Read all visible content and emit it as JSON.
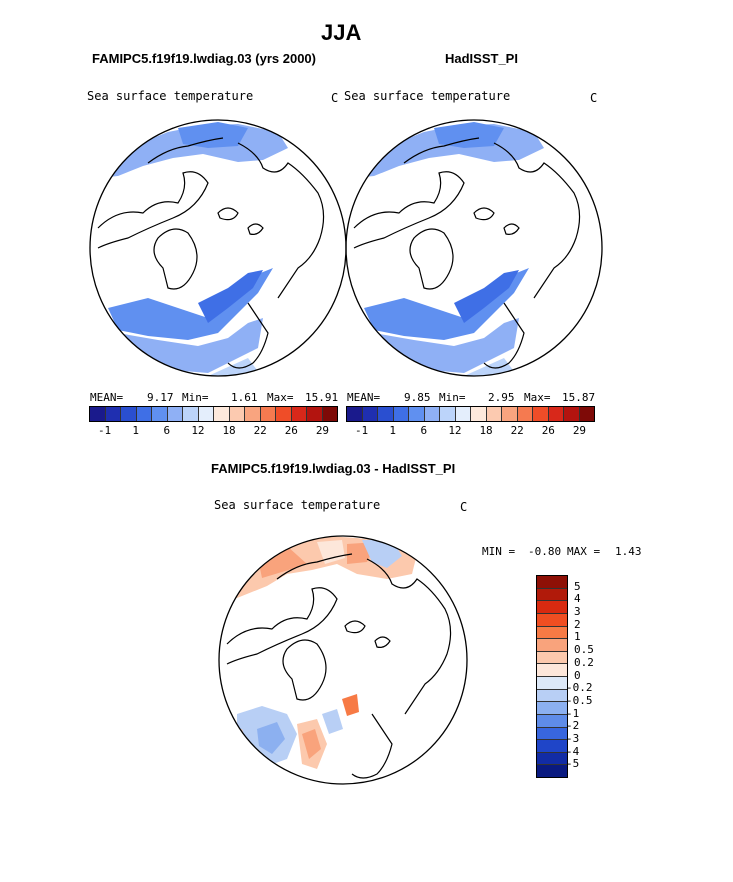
{
  "figure": {
    "season": "JJA",
    "left_case": "FAMIPC5.f19f19.lwdiag.03 (yrs 2000)",
    "right_case": "HadISST_PI",
    "diff_title": "FAMIPC5.f19f19.lwdiag.03 - HadISST_PI"
  },
  "panels": {
    "left": {
      "variable": "Sea surface temperature",
      "units": "C",
      "mean_label": "MEAN=",
      "mean": "9.17",
      "min_label": "Min=",
      "min": "1.61",
      "max_label": "Max=",
      "max": "15.91"
    },
    "right": {
      "variable": "Sea surface temperature",
      "units": "C",
      "mean_label": "MEAN=",
      "mean": "9.85",
      "min_label": "Min=",
      "min": "2.95",
      "max_label": "Max=",
      "max": "15.87"
    },
    "diff": {
      "variable": "Sea surface temperature",
      "units": "C",
      "min_label": "MIN =",
      "min": "-0.80",
      "max_label": "MAX =",
      "max": "1.43"
    }
  },
  "colorbar_abs": {
    "colors": [
      "#1a1a8c",
      "#1f2fb0",
      "#2a4fd0",
      "#3f6fe6",
      "#6090f0",
      "#8fb0f5",
      "#bcd4fa",
      "#e4eefc",
      "#fde9dc",
      "#fccab0",
      "#f9a47f",
      "#f57a50",
      "#ef4d28",
      "#d8281a",
      "#b3140f",
      "#7e0a07"
    ],
    "tick_labels": [
      "-1",
      "1",
      "6",
      "12",
      "18",
      "22",
      "26",
      "29"
    ]
  },
  "colorbar_diff": {
    "colors": [
      "#8e1006",
      "#b11a0a",
      "#d92a10",
      "#f04e22",
      "#f77a45",
      "#f9a37c",
      "#fcc9ad",
      "#fde7da",
      "#dde9f8",
      "#b8cff5",
      "#8cb0f0",
      "#5f8ce8",
      "#3866de",
      "#1f45c8",
      "#122ca5",
      "#0a1a80"
    ],
    "tick_labels": [
      "5",
      "4",
      "3",
      "2",
      "1",
      "0.5",
      "0.2",
      "0",
      "-0.2",
      "-0.5",
      "-1",
      "-2",
      "-3",
      "-4",
      "-5"
    ]
  }
}
